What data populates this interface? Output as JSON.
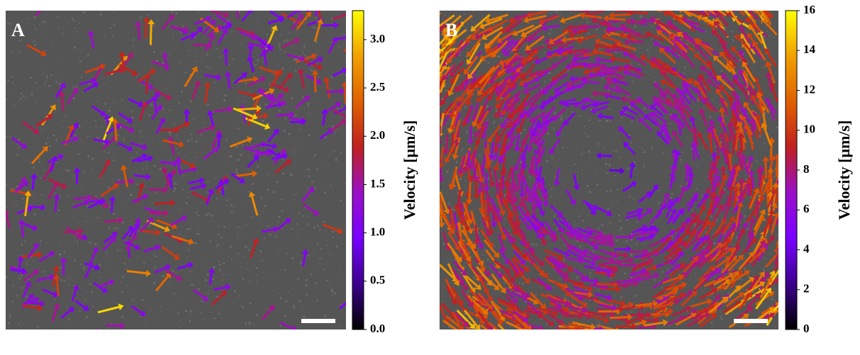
{
  "chart_data": [
    {
      "type": "vector_field",
      "panel_label": "A",
      "colorbar_label": "Velocity [μm/s]",
      "clim": [
        0,
        3.3
      ],
      "cticks": [
        {
          "value": 0,
          "label": "0.0"
        },
        0.5,
        {
          "value": 1,
          "label": "1.0"
        },
        1.5,
        {
          "value": 2,
          "label": "2.0"
        },
        2.5,
        {
          "value": 3,
          "label": "3.0"
        }
      ],
      "colormap": [
        "#000000",
        "#3c008c",
        "#7800ff",
        "#9a10c8",
        "#c02020",
        "#e06000",
        "#f0a000",
        "#ffff00"
      ],
      "pattern": "bands"
    },
    {
      "type": "vector_field",
      "panel_label": "B",
      "colorbar_label": "Velocity [μm/s]",
      "clim": [
        0,
        16
      ],
      "cticks": [
        0,
        2,
        4,
        6,
        8,
        10,
        12,
        14,
        16
      ],
      "colormap": [
        "#000000",
        "#3c008c",
        "#7800ff",
        "#9a10c8",
        "#c02020",
        "#e06000",
        "#f0a000",
        "#ffff00"
      ],
      "pattern": "vortex"
    }
  ]
}
